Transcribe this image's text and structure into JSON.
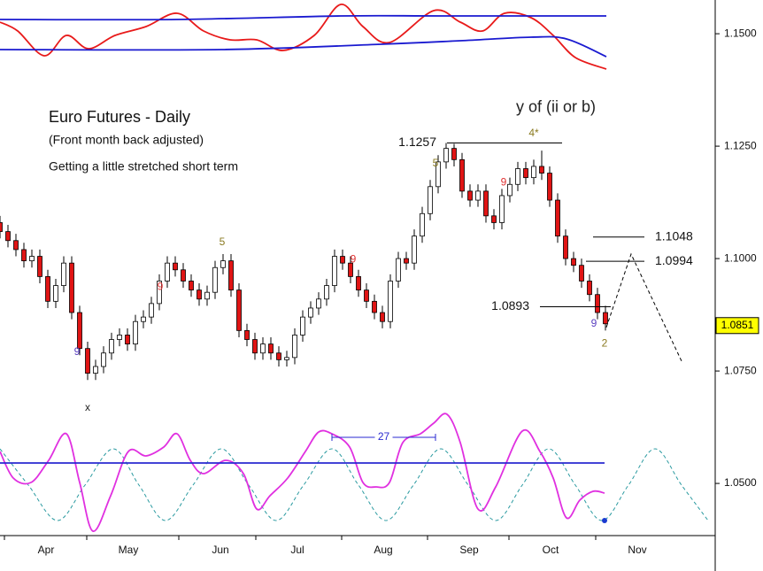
{
  "chart_data": [
    {
      "type": "candlestick",
      "title": "Euro Futures - Daily",
      "subtitle": "(Front month back adjusted)",
      "note": "Getting a little stretched short term",
      "x": [
        0,
        9,
        18,
        27,
        36,
        45,
        54,
        63,
        72,
        81,
        90,
        99,
        108,
        117,
        126,
        135,
        144,
        153,
        162,
        171,
        180,
        189,
        198,
        207,
        216,
        225,
        234,
        243,
        252,
        261,
        270,
        279,
        288,
        297,
        306,
        315,
        324,
        333,
        342,
        351,
        360,
        369,
        378,
        387,
        396,
        405,
        414,
        423,
        432,
        441,
        450,
        459,
        468,
        477,
        486,
        495,
        504,
        513,
        522,
        531,
        540,
        549,
        558,
        567,
        576,
        585,
        594,
        603,
        612,
        621,
        630,
        639,
        648,
        657,
        666,
        675,
        684
      ],
      "open": [
        1.108,
        1.106,
        1.104,
        1.102,
        1.0995,
        1.1005,
        1.096,
        1.0905,
        1.094,
        1.099,
        1.088,
        1.08,
        1.0745,
        1.076,
        1.079,
        1.082,
        1.083,
        1.081,
        1.086,
        1.087,
        1.09,
        1.095,
        1.099,
        1.0975,
        1.095,
        1.093,
        1.091,
        1.0925,
        1.098,
        1.0995,
        1.093,
        1.084,
        1.082,
        1.079,
        1.081,
        1.079,
        1.0775,
        1.078,
        1.083,
        1.087,
        1.089,
        1.091,
        1.094,
        1.1005,
        1.099,
        1.096,
        1.093,
        1.0905,
        1.088,
        1.086,
        1.095,
        1.1,
        1.099,
        1.105,
        1.11,
        1.116,
        1.1215,
        1.1245,
        1.122,
        1.115,
        1.113,
        1.115,
        1.1095,
        1.108,
        1.114,
        1.1165,
        1.12,
        1.118,
        1.1205,
        1.119,
        1.113,
        1.105,
        1.1,
        1.0985,
        1.095,
        1.092,
        1.088
      ],
      "high": [
        1.1095,
        1.1075,
        1.1055,
        1.1035,
        1.102,
        1.102,
        1.0975,
        1.0955,
        1.1005,
        1.1005,
        1.0895,
        1.0815,
        1.0775,
        1.0805,
        1.0835,
        1.0845,
        1.0845,
        1.0875,
        1.0885,
        1.0915,
        1.0965,
        1.1005,
        1.1005,
        1.099,
        1.0965,
        1.0945,
        1.094,
        1.0995,
        1.101,
        1.101,
        1.0945,
        1.0855,
        1.0835,
        1.0825,
        1.0825,
        1.0805,
        1.0795,
        1.0845,
        1.0885,
        1.0905,
        1.0925,
        1.0955,
        1.102,
        1.102,
        1.1005,
        1.0975,
        1.0945,
        1.092,
        1.0895,
        1.0965,
        1.1015,
        1.1015,
        1.1065,
        1.1115,
        1.1175,
        1.123,
        1.1257,
        1.1255,
        1.1235,
        1.1165,
        1.1165,
        1.1165,
        1.111,
        1.1155,
        1.118,
        1.1215,
        1.1215,
        1.122,
        1.124,
        1.1205,
        1.1145,
        1.1065,
        1.1015,
        1.1,
        1.0965,
        1.0935,
        1.0895
      ],
      "low": [
        1.1045,
        1.1025,
        1.1005,
        1.098,
        1.098,
        1.0945,
        1.089,
        1.089,
        1.0925,
        1.0865,
        1.0785,
        1.073,
        1.073,
        1.0745,
        1.0775,
        1.0805,
        1.0795,
        1.0795,
        1.0845,
        1.0855,
        1.0885,
        1.0935,
        1.096,
        1.0935,
        1.0915,
        1.0895,
        1.0895,
        1.091,
        1.0965,
        1.0915,
        1.0825,
        1.0805,
        1.0775,
        1.0775,
        1.0775,
        1.076,
        1.076,
        1.0765,
        1.0815,
        1.0855,
        1.0875,
        1.0895,
        1.0925,
        1.0975,
        1.0945,
        1.0915,
        1.089,
        1.0865,
        1.0845,
        1.0845,
        1.0935,
        1.0975,
        1.0975,
        1.1035,
        1.1085,
        1.1145,
        1.12,
        1.1205,
        1.1135,
        1.1115,
        1.1115,
        1.108,
        1.1065,
        1.1065,
        1.1125,
        1.115,
        1.1165,
        1.1165,
        1.1175,
        1.1115,
        1.1035,
        1.0985,
        1.097,
        1.0935,
        1.0905,
        1.0865,
        1.084
      ],
      "close": [
        1.106,
        1.104,
        1.102,
        1.0995,
        1.1005,
        1.096,
        1.0905,
        1.094,
        1.099,
        1.088,
        1.08,
        1.0745,
        1.076,
        1.079,
        1.082,
        1.083,
        1.081,
        1.086,
        1.087,
        1.09,
        1.095,
        1.099,
        1.0975,
        1.095,
        1.093,
        1.091,
        1.0925,
        1.098,
        1.0995,
        1.093,
        1.084,
        1.082,
        1.079,
        1.081,
        1.079,
        1.0775,
        1.078,
        1.083,
        1.087,
        1.089,
        1.091,
        1.094,
        1.1005,
        1.099,
        1.096,
        1.093,
        1.0905,
        1.088,
        1.086,
        1.095,
        1.1,
        1.099,
        1.105,
        1.11,
        1.116,
        1.1215,
        1.1245,
        1.122,
        1.115,
        1.113,
        1.115,
        1.1095,
        1.108,
        1.114,
        1.1165,
        1.12,
        1.118,
        1.1205,
        1.119,
        1.113,
        1.105,
        1.1,
        1.0985,
        1.095,
        1.092,
        1.088,
        1.0855
      ],
      "up_color": "#ffffff",
      "down_color": "#e01414",
      "xlim": [
        0,
        808
      ],
      "xticks": [
        {
          "value": 52,
          "label": "Apr"
        },
        {
          "value": 145,
          "label": "May"
        },
        {
          "value": 249,
          "label": "Jun"
        },
        {
          "value": 336,
          "label": "Jul"
        },
        {
          "value": 433,
          "label": "Aug"
        },
        {
          "value": 530,
          "label": "Sep"
        },
        {
          "value": 622,
          "label": "Oct"
        },
        {
          "value": 720,
          "label": "Nov"
        }
      ],
      "ylim": [
        1.0384,
        1.1575
      ],
      "yticks": [
        {
          "value": 1.15,
          "label": "1.1500"
        },
        {
          "value": 1.125,
          "label": "1.1250"
        },
        {
          "value": 1.1,
          "label": "1.1000"
        },
        {
          "value": 1.075,
          "label": "1.0750"
        },
        {
          "value": 1.05,
          "label": "1.0500"
        }
      ],
      "last_price": 1.0851,
      "levels": [
        {
          "value": 1.1257,
          "x": [
            505,
            635
          ],
          "label_side": "left"
        },
        {
          "value": 1.1048,
          "x": [
            670,
            728
          ],
          "label_side": "right"
        },
        {
          "value": 1.0994,
          "x": [
            662,
            728
          ],
          "label_side": "right"
        },
        {
          "value": 1.0893,
          "x": [
            610,
            690
          ],
          "label_side": "left"
        }
      ],
      "projection": {
        "x": [
          685,
          713,
          770
        ],
        "values": [
          1.0847,
          1.101,
          1.0772
        ]
      },
      "annotations": [
        {
          "text": "y of (ii or b)",
          "x": 628,
          "y": 1.1335,
          "color": "#222222"
        },
        {
          "text": "x",
          "x": 99,
          "y": 1.0668,
          "color": "#222222"
        },
        {
          "text": "9",
          "x": 87,
          "y": 1.0792,
          "color": "#5a3fc0"
        },
        {
          "text": "9",
          "x": 181,
          "y": 1.0937,
          "color": "#e03030"
        },
        {
          "text": "5",
          "x": 251,
          "y": 1.1036,
          "color": "#8a7a20"
        },
        {
          "text": "9",
          "x": 399,
          "y": 1.0998,
          "color": "#e03030"
        },
        {
          "text": "5",
          "x": 492,
          "y": 1.1211,
          "color": "#8a7a20"
        },
        {
          "text": "9",
          "x": 569,
          "y": 1.1169,
          "color": "#e03030"
        },
        {
          "text": "4*",
          "x": 603,
          "y": 1.1278,
          "color": "#8a7a20"
        },
        {
          "text": "9",
          "x": 671,
          "y": 1.0855,
          "color": "#5a3fc0"
        },
        {
          "text": "2",
          "x": 683,
          "y": 1.0811,
          "color": "#8a7a20"
        }
      ]
    },
    {
      "type": "line",
      "xlim": [
        0,
        808
      ],
      "ylim": [
        0,
        80
      ],
      "series": [
        {
          "color": "#e81a1a",
          "x": [
            0,
            20,
            50,
            75,
            100,
            130,
            165,
            200,
            230,
            260,
            290,
            320,
            355,
            385,
            410,
            440,
            490,
            520,
            545,
            570,
            600,
            625,
            650,
            685
          ],
          "values": [
            55,
            45,
            17,
            40,
            25,
            40,
            50,
            65,
            45,
            35,
            35,
            23,
            40,
            75,
            50,
            32,
            68,
            55,
            45,
            65,
            60,
            40,
            15,
            2
          ]
        },
        {
          "color": "#1a1ad0",
          "x": [
            0,
            200,
            385,
            500,
            685
          ],
          "values": [
            58,
            58,
            62,
            62,
            62
          ]
        },
        {
          "color": "#1a1ad0",
          "x": [
            0,
            250,
            430,
            520,
            600,
            640,
            685
          ],
          "values": [
            24,
            24,
            30,
            34,
            38,
            36,
            16
          ]
        }
      ]
    },
    {
      "type": "line",
      "xlim": [
        0,
        808
      ],
      "ylim": [
        0,
        150
      ],
      "series": [
        {
          "color": "#2a9aa0",
          "dashed": true,
          "x": [
            0,
            32,
            65,
            96,
            128,
            157,
            187,
            218,
            250,
            281,
            312,
            343,
            375,
            405,
            436,
            467,
            498,
            529,
            560,
            590,
            620,
            650,
            680,
            710,
            740,
            770,
            800
          ],
          "values": [
            103,
            62,
            22,
            62,
            103,
            62,
            22,
            62,
            103,
            62,
            22,
            62,
            103,
            62,
            22,
            62,
            103,
            62,
            22,
            62,
            103,
            62,
            22,
            62,
            103,
            62,
            22
          ]
        },
        {
          "color": "#e030e0",
          "x": [
            0,
            15,
            35,
            55,
            75,
            90,
            105,
            125,
            145,
            165,
            185,
            200,
            215,
            230,
            255,
            275,
            290,
            305,
            325,
            345,
            360,
            375,
            395,
            410,
            425,
            440,
            455,
            475,
            490,
            505,
            520,
            540,
            560,
            590,
            610,
            625,
            640,
            655,
            670,
            683
          ],
          "values": [
            100,
            70,
            65,
            90,
            120,
            65,
            10,
            50,
            100,
            95,
            105,
            120,
            90,
            75,
            90,
            75,
            35,
            50,
            70,
            100,
            122,
            120,
            105,
            65,
            60,
            65,
            110,
            120,
            132,
            142,
            110,
            35,
            60,
            123,
            100,
            70,
            25,
            45,
            55,
            53
          ]
        },
        {
          "color": "#2a2ad0",
          "x": [
            0,
            683
          ],
          "values": [
            87,
            87
          ]
        }
      ],
      "markers": [
        {
          "x": 683,
          "y": 22,
          "color": "#1a3ad0"
        }
      ],
      "bracket": {
        "text": "27",
        "x": [
          375,
          492
        ],
        "y": 116,
        "color": "#2a2ad0"
      }
    }
  ]
}
